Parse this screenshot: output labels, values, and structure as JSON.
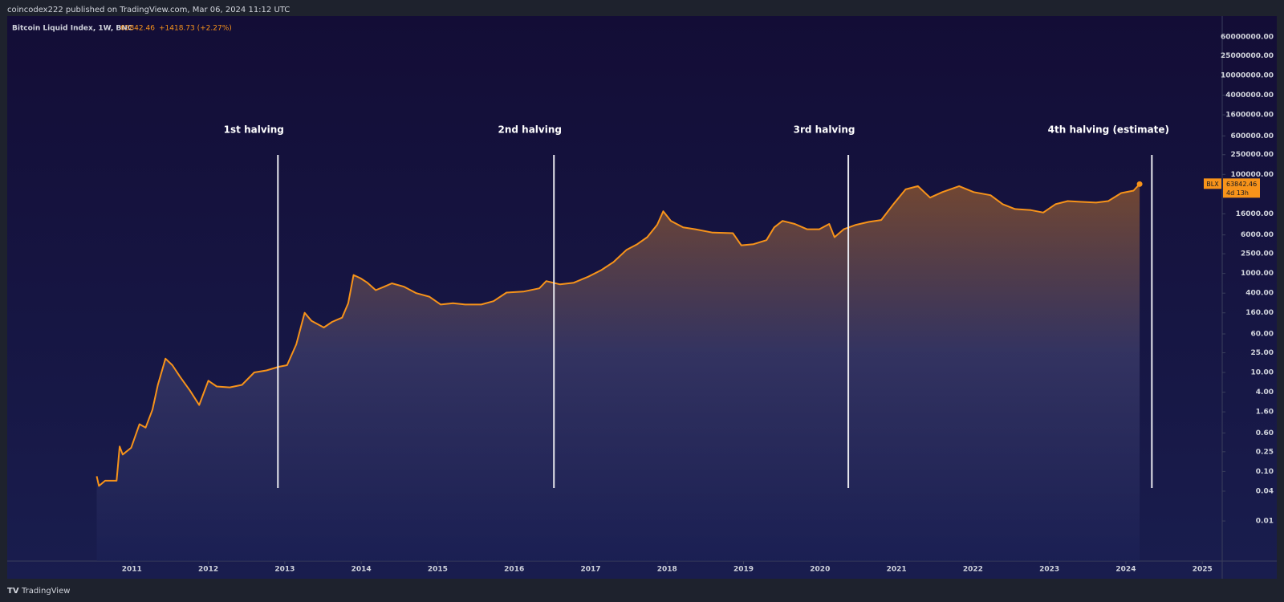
{
  "header": {
    "published": "coincodex222 published on TradingView.com, Mar 06, 2024 11:12 UTC"
  },
  "footer": {
    "brand": "TradingView"
  },
  "chart_data": {
    "type": "line",
    "legend": {
      "name": "Bitcoin Liquid Index, 1W, BNC",
      "change": "+1418.73 (+2.27%)"
    },
    "price_tag": {
      "symbol": "BLX",
      "countdown": "4d 13h"
    },
    "log_scale": true,
    "xlim": [
      2009.37,
      2025.26
    ],
    "xticks": [
      2011,
      2012,
      2013,
      2014,
      2015,
      2016,
      2017,
      2018,
      2019,
      2020,
      2021,
      2022,
      2023,
      2024,
      2025
    ],
    "ylim": [
      0.00155,
      158000000
    ],
    "yticks": [
      {
        "value": 0.01,
        "label": "0.01"
      },
      {
        "value": 0.04,
        "label": "0.04"
      },
      {
        "value": 0.1,
        "label": "0.10"
      },
      {
        "value": 0.25,
        "label": "0.25"
      },
      {
        "value": 0.6,
        "label": "0.60"
      },
      {
        "value": 1.6,
        "label": "1.60"
      },
      {
        "value": 4,
        "label": "4.00"
      },
      {
        "value": 10,
        "label": "10.00"
      },
      {
        "value": 25,
        "label": "25.00"
      },
      {
        "value": 60,
        "label": "60.00"
      },
      {
        "value": 160,
        "label": "160.00"
      },
      {
        "value": 400,
        "label": "400.00"
      },
      {
        "value": 1000,
        "label": "1000.00"
      },
      {
        "value": 2500,
        "label": "2500.00"
      },
      {
        "value": 6000,
        "label": "6000.00"
      },
      {
        "value": 16000,
        "label": "16000.00"
      },
      {
        "value": 100000,
        "label": "100000.00"
      },
      {
        "value": 250000,
        "label": "250000.00"
      },
      {
        "value": 600000,
        "label": "600000.00"
      },
      {
        "value": 1600000,
        "label": "1600000.00"
      },
      {
        "value": 4000000,
        "label": "4000000.00"
      },
      {
        "value": 10000000,
        "label": "10000000.00"
      },
      {
        "value": 25000000,
        "label": "25000000.00"
      },
      {
        "value": 60000000,
        "label": "60000000.00"
      }
    ],
    "annotations": [
      {
        "text": "1st halving",
        "x": 2012.91
      },
      {
        "text": "2nd halving",
        "x": 2016.52
      },
      {
        "text": "3rd halving",
        "x": 2020.37
      },
      {
        "text": "4th halving (estimate)",
        "x": 2024.34
      }
    ],
    "series": [
      {
        "name": "BLX",
        "color": "#f7931a",
        "x": [
          2010.54,
          2010.57,
          2010.65,
          2010.8,
          2010.84,
          2010.88,
          2010.99,
          2011.1,
          2011.18,
          2011.27,
          2011.34,
          2011.44,
          2011.53,
          2011.63,
          2011.76,
          2011.88,
          2012.0,
          2012.11,
          2012.28,
          2012.44,
          2012.6,
          2012.76,
          2012.92,
          2013.03,
          2013.15,
          2013.26,
          2013.35,
          2013.51,
          2013.62,
          2013.75,
          2013.83,
          2013.9,
          2013.99,
          2014.08,
          2014.19,
          2014.3,
          2014.4,
          2014.56,
          2014.72,
          2014.89,
          2015.04,
          2015.2,
          2015.36,
          2015.57,
          2015.73,
          2015.9,
          2016.12,
          2016.33,
          2016.42,
          2016.6,
          2016.78,
          2016.97,
          2017.14,
          2017.3,
          2017.47,
          2017.61,
          2017.74,
          2017.87,
          2017.95,
          2018.05,
          2018.21,
          2018.37,
          2018.59,
          2018.86,
          2018.97,
          2019.13,
          2019.3,
          2019.4,
          2019.51,
          2019.67,
          2019.83,
          2019.99,
          2020.12,
          2020.19,
          2020.31,
          2020.47,
          2020.64,
          2020.8,
          2020.96,
          2021.12,
          2021.28,
          2021.44,
          2021.6,
          2021.82,
          2022.01,
          2022.23,
          2022.39,
          2022.55,
          2022.76,
          2022.92,
          2023.08,
          2023.24,
          2023.4,
          2023.61,
          2023.77,
          2023.94,
          2024.1,
          2024.18
        ],
        "values": [
          0.08,
          0.051,
          0.065,
          0.065,
          0.32,
          0.22,
          0.3,
          0.9,
          0.77,
          1.78,
          5.6,
          19,
          14,
          8.2,
          4.3,
          2.2,
          6.8,
          5.2,
          5.0,
          5.6,
          10,
          11,
          13,
          14,
          37,
          160,
          110,
          81,
          105,
          128,
          250,
          930,
          800,
          650,
          460,
          540,
          630,
          540,
          400,
          340,
          235,
          250,
          235,
          235,
          275,
          410,
          430,
          500,
          700,
          600,
          650,
          860,
          1170,
          1700,
          3000,
          3900,
          5400,
          9600,
          18000,
          11500,
          8500,
          7800,
          6700,
          6500,
          3700,
          3900,
          4700,
          8500,
          11500,
          10000,
          7800,
          7800,
          10000,
          5400,
          7800,
          9600,
          11000,
          12000,
          25000,
          50000,
          58000,
          34000,
          44000,
          58000,
          44000,
          38000,
          25000,
          20000,
          19000,
          17000,
          25000,
          29000,
          28000,
          27000,
          29000,
          42000,
          47000,
          63842.46
        ]
      }
    ]
  }
}
